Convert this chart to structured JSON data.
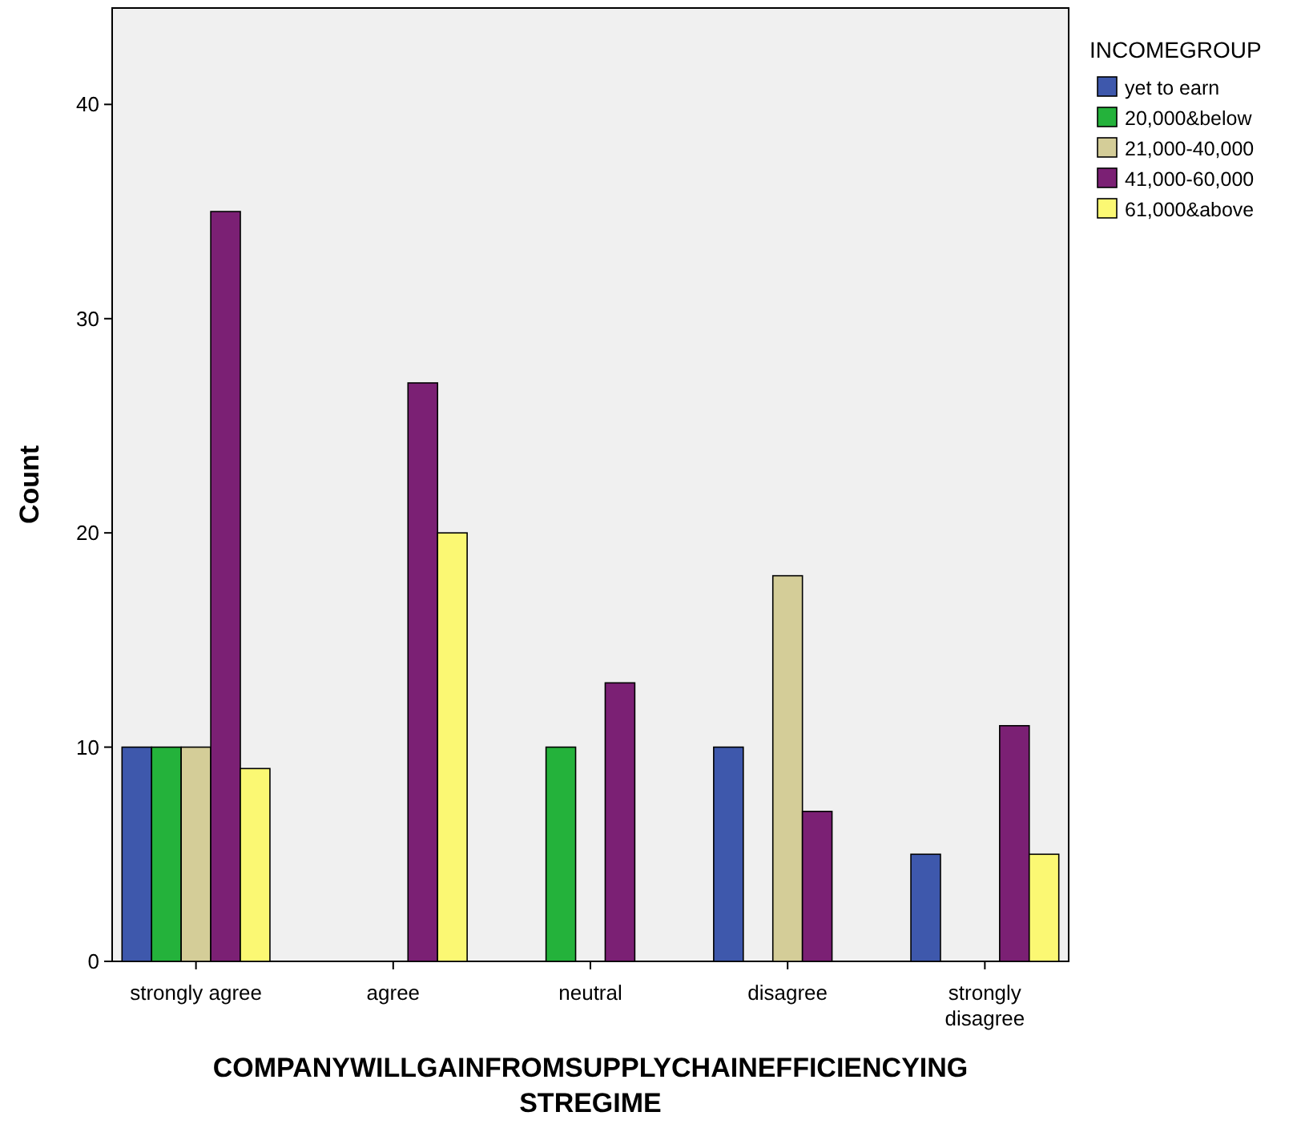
{
  "chart_data": {
    "type": "bar",
    "xlabel": "COMPANYWILLGAINFROMSUPPLYCHAINEFFICIENCYINGSTREGIME",
    "ylabel": "Count",
    "legend_title": "INCOMEGROUP",
    "categories": [
      "strongly agree",
      "agree",
      "neutral",
      "disagree",
      "strongly\ndisagree"
    ],
    "series": [
      {
        "name": "yet to earn",
        "color": "#3e58ac",
        "values": [
          10,
          0,
          0,
          10,
          5
        ]
      },
      {
        "name": "20,000&below",
        "color": "#24b23b",
        "values": [
          10,
          0,
          10,
          0,
          0
        ]
      },
      {
        "name": "21,000-40,000",
        "color": "#d4cd98",
        "values": [
          10,
          0,
          0,
          18,
          0
        ]
      },
      {
        "name": "41,000-60,000",
        "color": "#7b2074",
        "values": [
          35,
          27,
          13,
          7,
          11
        ]
      },
      {
        "name": "61,000&above",
        "color": "#fbf873",
        "values": [
          9,
          20,
          0,
          0,
          5
        ]
      }
    ],
    "ylim": [
      0,
      44.5
    ],
    "yticks": [
      0,
      10,
      20,
      30,
      40
    ],
    "grid": false,
    "legend": "top right"
  }
}
